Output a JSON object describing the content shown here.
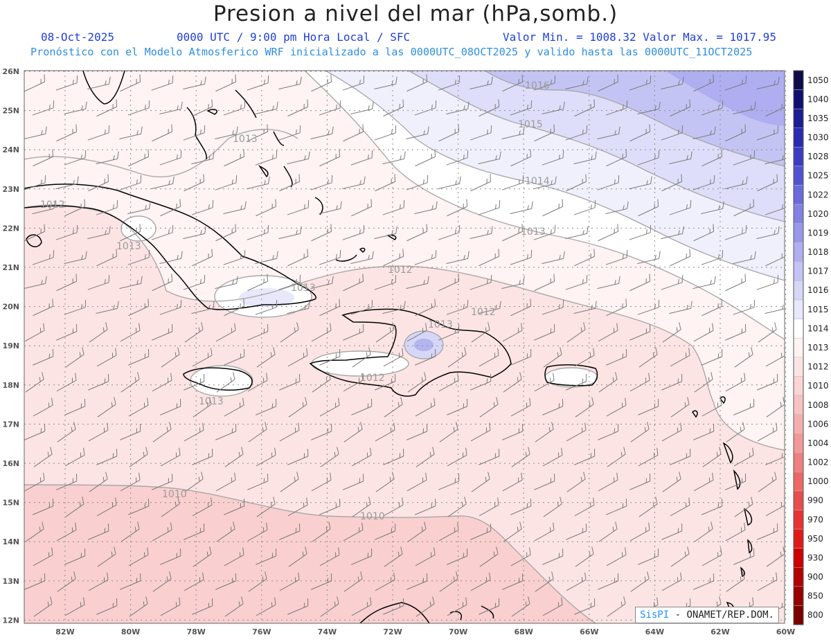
{
  "header": {
    "title": "Presion a nivel del mar (hPa,somb.)",
    "date": "08-Oct-2025",
    "time": "0000 UTC / 9:00 pm Hora Local / SFC",
    "minmax": "Valor Min. = 1008.32  Valor Max. = 1017.95",
    "model_line": "Pronóstico con el Modelo Atmosferico WRF inicializado a las 0000UTC_08OCT2025 y valido hasta las  0000UTC_11OCT2025"
  },
  "map": {
    "lon_labels": [
      "82W",
      "80W",
      "78W",
      "76W",
      "74W",
      "72W",
      "70W",
      "68W",
      "66W",
      "64W",
      "62W",
      "60W"
    ],
    "lat_labels": [
      "26N",
      "25N",
      "24N",
      "23N",
      "22N",
      "21N",
      "20N",
      "19N",
      "18N",
      "17N",
      "16N",
      "15N",
      "14N",
      "13N",
      "12N"
    ],
    "contour_labels": [
      "1016",
      "1015",
      "1014",
      "1013",
      "1013",
      "1013",
      "1013",
      "1012",
      "1012",
      "1012",
      "1012",
      "1013",
      "1013",
      "1010",
      "1010"
    ]
  },
  "colorbar": {
    "levels": [
      "1050",
      "1040",
      "1035",
      "1030",
      "1028",
      "1025",
      "1022",
      "1020",
      "1019",
      "1018",
      "1017",
      "1016",
      "1015",
      "1014",
      "1013",
      "1012",
      "1010",
      "1008",
      "1006",
      "1004",
      "1002",
      "1000",
      "990",
      "970",
      "950",
      "930",
      "900",
      "850",
      "800"
    ],
    "colors": [
      "#0d0d4a",
      "#101070",
      "#1c1c96",
      "#2a2ab0",
      "#3d3dc4",
      "#5252d1",
      "#6a6adb",
      "#8282e3",
      "#9898ea",
      "#aeaef0",
      "#c3c3f5",
      "#d6d6f8",
      "#e8e8fb",
      "#ffffff",
      "#fff3f3",
      "#fde4e4",
      "#fbd4d4",
      "#f8c2c2",
      "#f5aeae",
      "#f29898",
      "#ef8080",
      "#ec6868",
      "#e84d4d",
      "#e53333",
      "#e01a1a",
      "#cc0000",
      "#b30000",
      "#990000",
      "#7a0000"
    ]
  },
  "credit": {
    "brand": "SisPI",
    "text": " - ONAMET/REP.DOM."
  }
}
